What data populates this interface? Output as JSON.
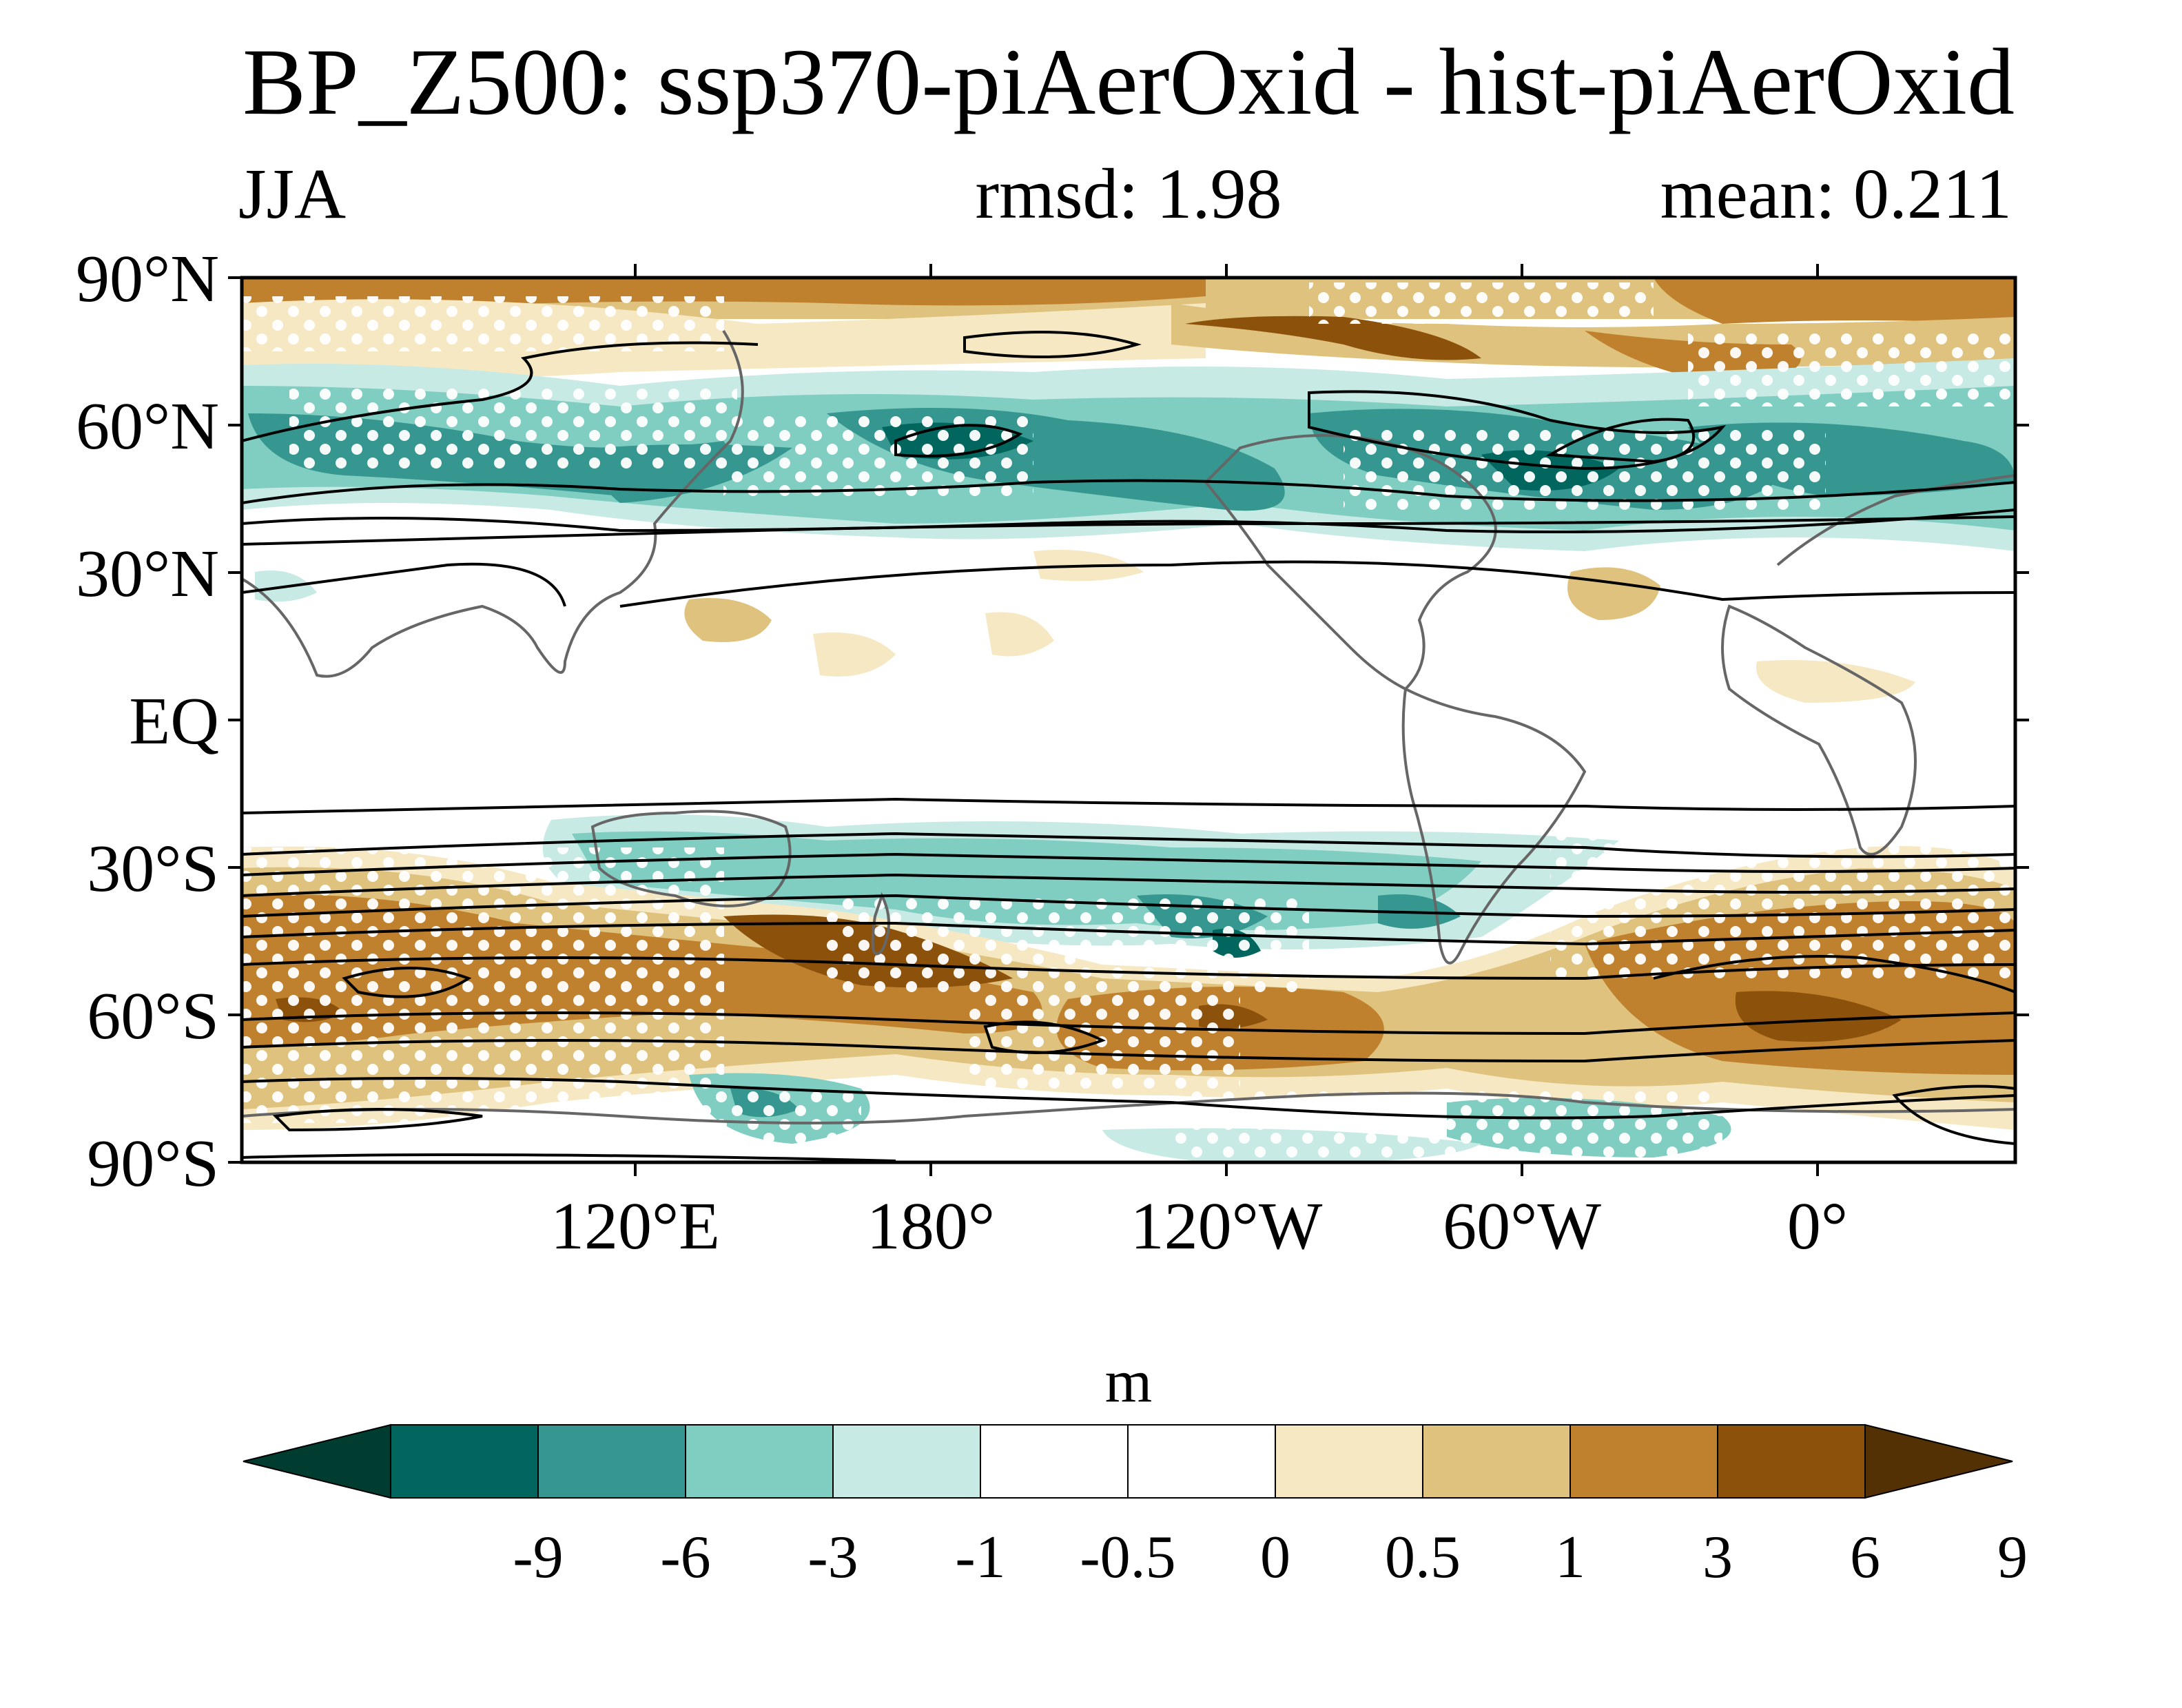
{
  "title": "BP_Z500: ssp370-piAerOxid - hist-piAerOxid",
  "season": "JJA",
  "rmsd_text": "rmsd: 1.98",
  "mean_text": "mean: 0.211",
  "units": "m",
  "lat_ticks": [
    "90°N",
    "60°N",
    "30°N",
    "EQ",
    "30°S",
    "60°S",
    "90°S"
  ],
  "lon_ticks": [
    "120°E",
    "180°",
    "120°W",
    "60°W",
    "0°"
  ],
  "colorbar": {
    "levels": [
      "-9",
      "-6",
      "-3",
      "-1",
      "-0.5",
      "0",
      "0.5",
      "1",
      "3",
      "6",
      "9"
    ],
    "colors": [
      "#01665e",
      "#35978f",
      "#80cdc1",
      "#c7eae5",
      "#ffffff",
      "#ffffff",
      "#f6e8c3",
      "#dfc27d",
      "#bf812d",
      "#8c510a"
    ],
    "under_color": "#003c30",
    "over_color": "#543005"
  },
  "chart_data": {
    "type": "heatmap",
    "title": "BP_Z500: ssp370-piAerOxid - hist-piAerOxid",
    "projection": "cylindrical equidistant, centered ~180° shifted (20°E to 380°E)",
    "lon_range": [
      20,
      380
    ],
    "lat_range": [
      -90,
      90
    ],
    "field_units": "m",
    "stippling": "white dots mark significant regions",
    "contours": "black lines show climatological field",
    "anomaly_regions": [
      {
        "lon": [
          20,
          380
        ],
        "lat": [
          82,
          90
        ],
        "value": 4,
        "note": "positive band near North Pole"
      },
      {
        "lon": [
          40,
          140
        ],
        "lat": [
          45,
          65
        ],
        "value": -4
      },
      {
        "lon": [
          150,
          240
        ],
        "lat": [
          45,
          65
        ],
        "value": -5
      },
      {
        "lon": [
          260,
          380
        ],
        "lat": [
          45,
          65
        ],
        "value": -5
      },
      {
        "lon": [
          280,
          300
        ],
        "lat": [
          60,
          75
        ],
        "value": 6
      },
      {
        "lon": [
          20,
          160
        ],
        "lat": [
          -60,
          -40
        ],
        "value": 5
      },
      {
        "lon": [
          150,
          200
        ],
        "lat": [
          -55,
          -40
        ],
        "value": 7
      },
      {
        "lon": [
          200,
          320
        ],
        "lat": [
          -70,
          -55
        ],
        "value": 5
      },
      {
        "lon": [
          320,
          380
        ],
        "lat": [
          -65,
          -45
        ],
        "value": 6
      },
      {
        "lon": [
          90,
          210
        ],
        "lat": [
          -40,
          -25
        ],
        "value": -2
      },
      {
        "lon": [
          210,
          300
        ],
        "lat": [
          -50,
          -35
        ],
        "value": -2
      },
      {
        "lon": [
          160,
          240
        ],
        "lat": [
          -85,
          -70
        ],
        "value": -2
      },
      {
        "lon": [
          290,
          360
        ],
        "lat": [
          -88,
          -72
        ],
        "value": -1
      }
    ]
  }
}
